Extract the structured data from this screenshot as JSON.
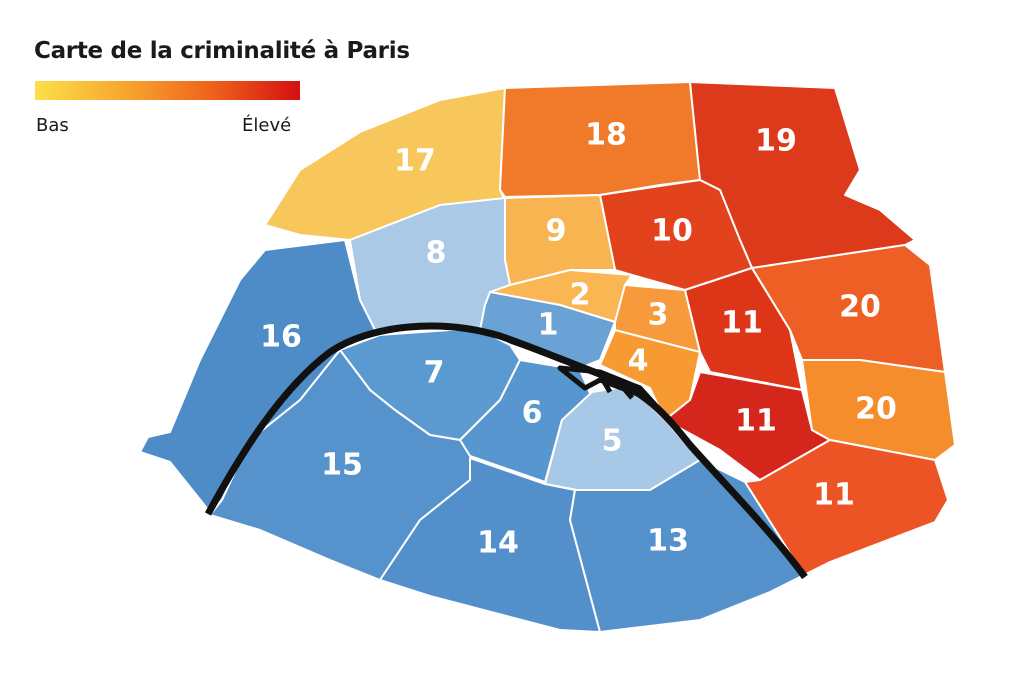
{
  "title": "Carte de la criminalité à Paris",
  "legend": {
    "low_label": "Bas",
    "high_label": "Élevé",
    "gradient": [
      "#fbe04a",
      "#f7a72e",
      "#f0621c",
      "#d41010"
    ]
  },
  "colors": {
    "river": "#111111",
    "border": "#ffffff"
  },
  "arrondissements": [
    {
      "label": "17",
      "color": "#f8c75c"
    },
    {
      "label": "18",
      "color": "#f07a2a"
    },
    {
      "label": "19",
      "color": "#dc3a1a"
    },
    {
      "label": "10",
      "color": "#e2421c"
    },
    {
      "label": "9",
      "color": "#f8b451"
    },
    {
      "label": "8",
      "color": "#a9c9e6"
    },
    {
      "label": "2",
      "color": "#f9b652"
    },
    {
      "label": "1",
      "color": "#6aa2d6"
    },
    {
      "label": "3",
      "color": "#f69a3c"
    },
    {
      "label": "4",
      "color": "#f79a32"
    },
    {
      "label": "11",
      "color": "#dd3518"
    },
    {
      "label": "20",
      "color": "#ee5f25"
    },
    {
      "label": "11",
      "color": "#d4261a"
    },
    {
      "label": "20",
      "color": "#f58d2c"
    },
    {
      "label": "11",
      "color": "#ec5426"
    },
    {
      "label": "16",
      "color": "#4e8cc7"
    },
    {
      "label": "7",
      "color": "#5b99d1"
    },
    {
      "label": "15",
      "color": "#5693cd"
    },
    {
      "label": "6",
      "color": "#5896cf"
    },
    {
      "label": "5",
      "color": "#a7c8e6"
    },
    {
      "label": "14",
      "color": "#5390cb"
    },
    {
      "label": "13",
      "color": "#5592cc"
    }
  ]
}
